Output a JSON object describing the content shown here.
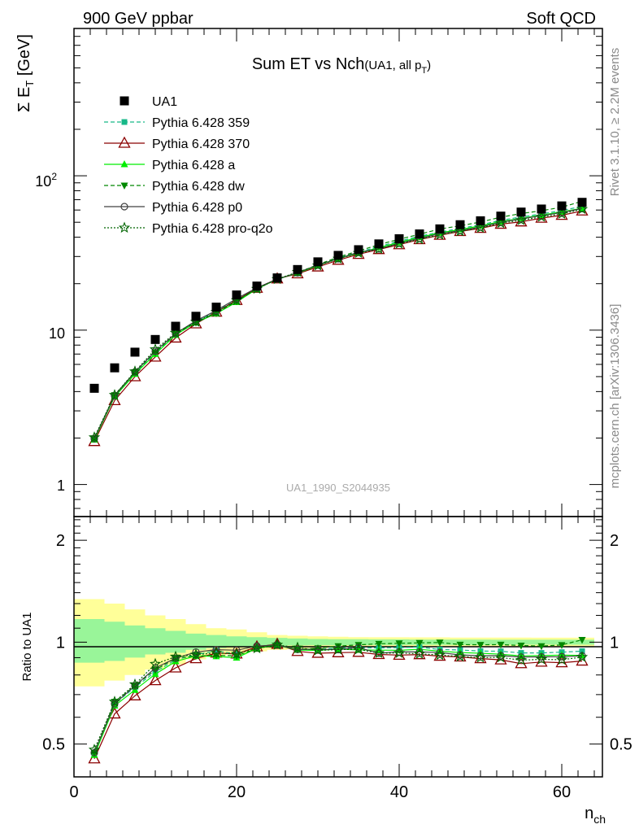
{
  "header": {
    "left": "900 GeV ppbar",
    "right": "Soft QCD"
  },
  "side_labels": {
    "top": "Rivet 3.1.10, ≥ 2.2M events",
    "bottom": "mcplots.cern.ch [arXiv:1306.3436]"
  },
  "colors": {
    "band_outer": "#ffff99",
    "band_inner": "#99f599",
    "data": "#000000",
    "p359": "#17b888",
    "p370": "#8b0000",
    "pa": "#00ee00",
    "pdw": "#008800",
    "pp0": "#404040",
    "pq2o": "#006400"
  },
  "chart_data": [
    {
      "type": "scatter",
      "title_main": "Sum ET vs Nch",
      "title_sub": "(UA1, all p",
      "title_sub_index": "T",
      "title_sub_close": ")",
      "ylabel": "Σ E",
      "ylabel_index": "T",
      "ylabel_unit": " [GeV]",
      "yscale": "log",
      "ylim": [
        0.62,
        900
      ],
      "xlim": [
        0,
        65
      ],
      "ytick_labels": {
        "1": "1",
        "10": "10",
        "100_base": "10",
        "100_exp": "2"
      },
      "watermark": "UA1_1990_S2044935",
      "legend_position": "top-left",
      "x": [
        2.5,
        5,
        7.5,
        10,
        12.5,
        15,
        17.5,
        20,
        22.5,
        25,
        27.5,
        30,
        32.5,
        35,
        37.5,
        40,
        42.5,
        45,
        47.5,
        50,
        52.5,
        55,
        57.5,
        60,
        62.5
      ],
      "series": [
        {
          "name": "UA1",
          "key": "data",
          "marker": "square",
          "line": "none",
          "values": [
            4.2,
            5.7,
            7.2,
            8.7,
            10.6,
            12.3,
            14.1,
            16.9,
            19.3,
            21.8,
            24.7,
            27.7,
            30.5,
            33.2,
            36.2,
            39.1,
            42,
            45.3,
            48.2,
            51.1,
            54.8,
            58.2,
            60.9,
            63.8,
            67.3
          ]
        },
        {
          "name": "Pythia 6.428 359",
          "key": "p359",
          "marker": "smallsquare",
          "line": "dashed",
          "values": [
            1.95,
            3.75,
            5.3,
            7.1,
            9.4,
            11.3,
            13.3,
            15.6,
            18.7,
            21.3,
            23.5,
            26.4,
            29.3,
            32,
            34.8,
            37.7,
            40.6,
            43.1,
            45.7,
            48.1,
            51.5,
            54.1,
            56.6,
            59.6,
            63.3
          ]
        },
        {
          "name": "Pythia 6.428 370",
          "key": "p370",
          "marker": "opentriangle",
          "line": "solid",
          "values": [
            1.9,
            3.5,
            5,
            6.7,
            8.9,
            11,
            13.1,
            15.6,
            18.7,
            21.5,
            23.2,
            25.7,
            28.4,
            31,
            33.3,
            35.8,
            38.6,
            41.2,
            43.6,
            45.7,
            48.6,
            50.3,
            53.2,
            55.5,
            59.2
          ]
        },
        {
          "name": "Pythia 6.428 a",
          "key": "pa",
          "marker": "triangle",
          "line": "solid",
          "values": [
            1.95,
            3.7,
            5.2,
            7,
            9.3,
            11.2,
            12.8,
            15.2,
            18.5,
            21.4,
            23.4,
            26.2,
            29.1,
            31.5,
            34.3,
            37,
            40,
            42.6,
            44.9,
            47.4,
            50.5,
            53,
            55.6,
            58.4,
            61.5
          ]
        },
        {
          "name": "Pythia 6.428 dw",
          "key": "pdw",
          "marker": "downtriangle",
          "line": "dashed",
          "values": [
            1.98,
            3.8,
            5.35,
            7.2,
            9.5,
            11.2,
            12.9,
            15.4,
            18.5,
            21.4,
            23.5,
            26.6,
            29.7,
            32.6,
            35.8,
            38.8,
            41.8,
            45.2,
            47.4,
            50.2,
            53.9,
            56.9,
            59.3,
            62.6,
            68.4
          ]
        },
        {
          "name": "Pythia 6.428 p0",
          "key": "pp0",
          "marker": "opencircle",
          "line": "solid",
          "values": [
            1.98,
            3.75,
            5.35,
            7.3,
            9.5,
            11.5,
            13.4,
            16,
            18.8,
            21.4,
            23.5,
            26.4,
            29,
            32,
            33.6,
            36.6,
            39.3,
            42.2,
            44.2,
            46.6,
            50,
            52.6,
            55.1,
            57.8,
            61.3
          ]
        },
        {
          "name": "Pythia 6.428 pro-q2o",
          "key": "pq2o",
          "marker": "star",
          "line": "dotted",
          "values": [
            2.02,
            3.8,
            5.4,
            7.5,
            9.6,
            11.3,
            13.1,
            15.6,
            18.5,
            21.4,
            23.8,
            26.2,
            29,
            31.6,
            33.6,
            36.3,
            38.8,
            41.5,
            43.7,
            46,
            49.4,
            51.5,
            54.2,
            56.6,
            60.8
          ]
        }
      ]
    },
    {
      "type": "line",
      "ylabel": "Ratio to UA1",
      "xlabel": "n",
      "xlabel_index": "ch",
      "xlim": [
        0,
        65
      ],
      "ylim": [
        0.4,
        2.35
      ],
      "yscale": "log",
      "x_ticks": [
        0,
        20,
        40,
        60
      ],
      "y_ticks": [
        0.5,
        1,
        2
      ],
      "reference_line": 1,
      "x": [
        2.5,
        5,
        7.5,
        10,
        12.5,
        15,
        17.5,
        20,
        22.5,
        25,
        27.5,
        30,
        32.5,
        35,
        37.5,
        40,
        42.5,
        45,
        47.5,
        50,
        52.5,
        55,
        57.5,
        60,
        62.5
      ],
      "band_outer": {
        "lo": [
          0.74,
          0.77,
          0.8,
          0.83,
          0.86,
          0.89,
          0.91,
          0.92,
          0.94,
          0.95,
          0.955,
          0.96,
          0.965,
          0.966,
          0.967,
          0.967,
          0.968,
          0.968,
          0.969,
          0.969,
          0.969,
          0.97,
          0.97,
          0.97,
          0.97
        ],
        "hi": [
          1.34,
          1.3,
          1.25,
          1.2,
          1.17,
          1.13,
          1.1,
          1.09,
          1.07,
          1.05,
          1.045,
          1.04,
          1.037,
          1.035,
          1.034,
          1.034,
          1.033,
          1.033,
          1.032,
          1.032,
          1.032,
          1.032,
          1.031,
          1.031,
          1.031
        ]
      },
      "band_inner": {
        "lo": [
          0.87,
          0.88,
          0.9,
          0.92,
          0.93,
          0.95,
          0.96,
          0.965,
          0.97,
          0.975,
          0.978,
          0.98,
          0.98,
          0.98,
          0.981,
          0.981,
          0.982,
          0.982,
          0.982,
          0.982,
          0.983,
          0.983,
          0.983,
          0.983,
          0.983
        ],
        "hi": [
          1.17,
          1.15,
          1.12,
          1.1,
          1.08,
          1.06,
          1.05,
          1.04,
          1.035,
          1.03,
          1.025,
          1.022,
          1.02,
          1.02,
          1.019,
          1.019,
          1.018,
          1.018,
          1.018,
          1.018,
          1.017,
          1.017,
          1.017,
          1.017,
          1.017
        ]
      }
    }
  ]
}
